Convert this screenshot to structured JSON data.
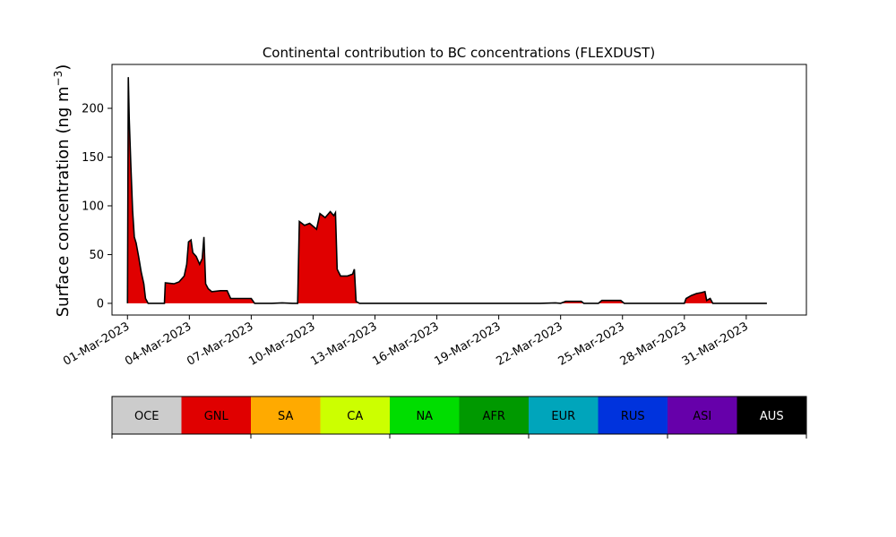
{
  "chart_data": {
    "type": "area",
    "title": "Continental contribution to BC concentrations (FLEXDUST)",
    "ylabel_main": "Surface concentration (ng m",
    "ylabel_sup": "−3",
    "ylabel_close": ")",
    "xlabel": "",
    "x_start": "2023-03-01",
    "x_end": "2023-04-01",
    "xlim": [
      "2023-02-28",
      "2023-04-03"
    ],
    "ylim": [
      -12,
      245
    ],
    "y_ticks": [
      0,
      50,
      100,
      150,
      200
    ],
    "y_tick_labels": [
      "0",
      "50",
      "100",
      "150",
      "200"
    ],
    "x_tick_dates": [
      "2023-03-01",
      "2023-03-04",
      "2023-03-07",
      "2023-03-10",
      "2023-03-13",
      "2023-03-16",
      "2023-03-19",
      "2023-03-22",
      "2023-03-25",
      "2023-03-28",
      "2023-03-31"
    ],
    "x_tick_labels": [
      "01-Mar-2023",
      "04-Mar-2023",
      "07-Mar-2023",
      "10-Mar-2023",
      "13-Mar-2023",
      "16-Mar-2023",
      "19-Mar-2023",
      "22-Mar-2023",
      "25-Mar-2023",
      "28-Mar-2023",
      "31-Mar-2023"
    ],
    "series": [
      {
        "name": "GNL",
        "color": "#e00000",
        "points": [
          [
            "2023-03-01 00:00",
            0
          ],
          [
            "2023-03-01 01:00",
            232
          ],
          [
            "2023-03-01 02:00",
            190
          ],
          [
            "2023-03-01 04:00",
            140
          ],
          [
            "2023-03-01 06:00",
            95
          ],
          [
            "2023-03-01 08:00",
            68
          ],
          [
            "2023-03-01 10:00",
            62
          ],
          [
            "2023-03-01 13:00",
            48
          ],
          [
            "2023-03-01 16:00",
            32
          ],
          [
            "2023-03-01 19:00",
            20
          ],
          [
            "2023-03-01 21:00",
            5
          ],
          [
            "2023-03-02 00:00",
            0
          ],
          [
            "2023-03-02 12:00",
            0
          ],
          [
            "2023-03-02 19:00",
            0
          ],
          [
            "2023-03-02 20:00",
            21
          ],
          [
            "2023-03-03 06:00",
            20
          ],
          [
            "2023-03-03 12:00",
            22
          ],
          [
            "2023-03-03 18:00",
            28
          ],
          [
            "2023-03-03 21:00",
            40
          ],
          [
            "2023-03-03 23:00",
            63
          ],
          [
            "2023-03-04 02:00",
            65
          ],
          [
            "2023-03-04 04:00",
            52
          ],
          [
            "2023-03-04 08:00",
            48
          ],
          [
            "2023-03-04 12:00",
            40
          ],
          [
            "2023-03-04 15:00",
            46
          ],
          [
            "2023-03-04 17:00",
            68
          ],
          [
            "2023-03-04 19:00",
            20
          ],
          [
            "2023-03-04 22:00",
            15
          ],
          [
            "2023-03-05 02:00",
            12
          ],
          [
            "2023-03-05 12:00",
            13
          ],
          [
            "2023-03-05 20:00",
            13
          ],
          [
            "2023-03-06 00:00",
            5
          ],
          [
            "2023-03-06 12:00",
            5
          ],
          [
            "2023-03-07 00:00",
            5
          ],
          [
            "2023-03-07 04:00",
            0
          ],
          [
            "2023-03-07 12:00",
            0
          ],
          [
            "2023-03-08 00:00",
            0
          ],
          [
            "2023-03-08 12:00",
            0.5
          ],
          [
            "2023-03-09 00:00",
            0
          ],
          [
            "2023-03-09 06:00",
            0
          ],
          [
            "2023-03-09 08:00",
            84
          ],
          [
            "2023-03-09 14:00",
            80
          ],
          [
            "2023-03-09 20:00",
            82
          ],
          [
            "2023-03-10 04:00",
            76
          ],
          [
            "2023-03-10 08:00",
            92
          ],
          [
            "2023-03-10 14:00",
            88
          ],
          [
            "2023-03-10 20:00",
            94
          ],
          [
            "2023-03-11 00:00",
            90
          ],
          [
            "2023-03-11 02:00",
            93
          ],
          [
            "2023-03-11 04:00",
            35
          ],
          [
            "2023-03-11 08:00",
            28
          ],
          [
            "2023-03-11 16:00",
            28
          ],
          [
            "2023-03-11 22:00",
            30
          ],
          [
            "2023-03-12 00:00",
            35
          ],
          [
            "2023-03-12 02:00",
            2
          ],
          [
            "2023-03-12 06:00",
            0
          ],
          [
            "2023-03-15 00:00",
            0
          ],
          [
            "2023-03-18 00:00",
            0
          ],
          [
            "2023-03-20 00:00",
            0
          ],
          [
            "2023-03-21 00:00",
            0
          ],
          [
            "2023-03-21 18:00",
            0.5
          ],
          [
            "2023-03-22 00:00",
            0
          ],
          [
            "2023-03-22 06:00",
            2
          ],
          [
            "2023-03-22 12:00",
            2
          ],
          [
            "2023-03-23 00:00",
            2
          ],
          [
            "2023-03-23 03:00",
            0
          ],
          [
            "2023-03-23 20:00",
            0
          ],
          [
            "2023-03-24 00:00",
            3
          ],
          [
            "2023-03-24 12:00",
            3
          ],
          [
            "2023-03-24 22:00",
            3
          ],
          [
            "2023-03-25 02:00",
            0
          ],
          [
            "2023-03-26 00:00",
            0
          ],
          [
            "2023-03-27 00:00",
            0
          ],
          [
            "2023-03-27 12:00",
            0
          ],
          [
            "2023-03-28 00:00",
            0
          ],
          [
            "2023-03-28 02:00",
            5
          ],
          [
            "2023-03-28 08:00",
            8
          ],
          [
            "2023-03-28 14:00",
            10
          ],
          [
            "2023-03-28 20:00",
            11
          ],
          [
            "2023-03-29 00:00",
            12
          ],
          [
            "2023-03-29 02:00",
            3
          ],
          [
            "2023-03-29 06:00",
            5
          ],
          [
            "2023-03-29 09:00",
            0
          ],
          [
            "2023-03-30 00:00",
            0
          ],
          [
            "2023-03-31 00:00",
            0
          ],
          [
            "2023-04-01 00:00",
            0
          ]
        ]
      }
    ],
    "grid": false,
    "colorbar": {
      "labels": [
        "OCE",
        "GNL",
        "SA",
        "CA",
        "NA",
        "AFR",
        "EUR",
        "RUS",
        "ASI",
        "AUS"
      ],
      "colors": [
        "#cccccc",
        "#e00000",
        "#ffaa00",
        "#ccff00",
        "#00dd00",
        "#009900",
        "#00a5bb",
        "#0033dd",
        "#6600aa",
        "#000000"
      ],
      "text_colors": [
        "#000000",
        "#000000",
        "#000000",
        "#000000",
        "#000000",
        "#000000",
        "#000000",
        "#000000",
        "#000000",
        "#ffffff"
      ]
    }
  }
}
